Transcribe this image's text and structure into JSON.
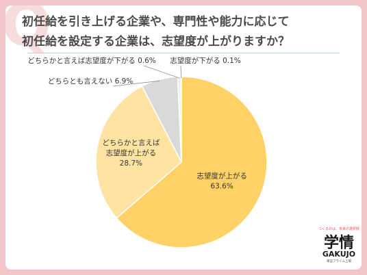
{
  "title_lines": [
    "初任給を引き上げる企業や、専門性や能力に応じて",
    "初任給を設定する企業は、志望度が上がりますか？"
  ],
  "colors": {
    "background": "#f2c6c8",
    "accent": "#e8545b",
    "slice_1": "#ffd166",
    "slice_2": "#ffe3a3",
    "slice_3": "#d9d9d9",
    "slice_4": "#eeeeee",
    "slice_5": "#b0b0b0"
  },
  "chart_data": {
    "type": "pie",
    "title": "",
    "start": "12 o'clock, clockwise",
    "slices": [
      {
        "label_lines": [
          "志望度が上がる"
        ],
        "value": 63.6,
        "value_text": "63.6%",
        "color": "#ffd166",
        "label_placement": "inside"
      },
      {
        "label_lines": [
          "どちらかと言えば",
          "志望度が上がる"
        ],
        "value": 28.7,
        "value_text": "28.7%",
        "color": "#ffe3a3",
        "label_placement": "inside"
      },
      {
        "label_lines": [
          "どちらとも言えない"
        ],
        "value": 6.9,
        "value_text": "6.9%",
        "color": "#d9d9d9",
        "label_placement": "outside"
      },
      {
        "label_lines": [
          "どちらかと言えば志望度が下がる"
        ],
        "value": 0.6,
        "value_text": "0.6%",
        "color": "#eeeeee",
        "label_placement": "outside"
      },
      {
        "label_lines": [
          "志望度が下がる"
        ],
        "value": 0.1,
        "value_text": "0.1%",
        "color": "#b0b0b0",
        "label_placement": "outside"
      }
    ]
  },
  "logo": {
    "tagline": "つくるのは、未来の選択肢",
    "mark": "学情",
    "brand": "GAKUJO",
    "sub": "東証プライム上場"
  }
}
